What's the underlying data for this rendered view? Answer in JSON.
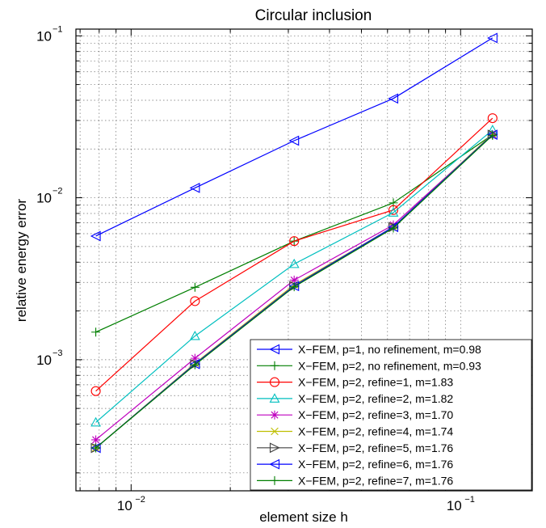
{
  "chart_data": {
    "type": "line",
    "title": "Circular inclusion",
    "xlabel": "element size h",
    "ylabel": "relative energy error",
    "xscale": "log",
    "yscale": "log",
    "xlim": [
      0.0068,
      0.165
    ],
    "ylim": [
      0.000155,
      0.11
    ],
    "grid": true,
    "legend_position": "bottom-right",
    "x": [
      0.0078125,
      0.015625,
      0.03125,
      0.0625,
      0.125
    ],
    "xticks": [
      {
        "value": 0.01,
        "base": "10",
        "exp": "−2"
      },
      {
        "value": 0.1,
        "base": "10",
        "exp": "−1"
      }
    ],
    "yticks": [
      {
        "value": 0.001,
        "base": "10",
        "exp": "−3"
      },
      {
        "value": 0.01,
        "base": "10",
        "exp": "−2"
      },
      {
        "value": 0.1,
        "base": "10",
        "exp": "−1"
      }
    ],
    "series": [
      {
        "name": "X−FEM, p=1, no refinement, m=0.98",
        "color": "#0000ff",
        "marker": "triangle-left",
        "values": [
          0.0058,
          0.0115,
          0.0225,
          0.041,
          0.097
        ]
      },
      {
        "name": "X−FEM, p=2, no refinement, m=0.93",
        "color": "#007f00",
        "marker": "plus",
        "values": [
          0.00148,
          0.0028,
          0.0054,
          0.0093,
          0.0245
        ]
      },
      {
        "name": "X−FEM, p=2, refine=1, m=1.83",
        "color": "#ff0000",
        "marker": "circle",
        "values": [
          0.00064,
          0.0023,
          0.0054,
          0.0084,
          0.031
        ]
      },
      {
        "name": "X−FEM, p=2, refine=2, m=1.82",
        "color": "#00bfbf",
        "marker": "triangle-up",
        "values": [
          0.00041,
          0.0014,
          0.0039,
          0.0081,
          0.0262
        ]
      },
      {
        "name": "X−FEM, p=2, refine=3, m=1.70",
        "color": "#bf00bf",
        "marker": "star",
        "values": [
          0.00032,
          0.00102,
          0.0031,
          0.0068,
          0.0245
        ]
      },
      {
        "name": "X−FEM, p=2, refine=4, m=1.74",
        "color": "#bfbf00",
        "marker": "x",
        "values": [
          0.000285,
          0.00095,
          0.0029,
          0.0066,
          0.0248
        ]
      },
      {
        "name": "X−FEM, p=2, refine=5, m=1.76",
        "color": "#404040",
        "marker": "triangle-right",
        "values": [
          0.000285,
          0.00094,
          0.00285,
          0.0066,
          0.0245
        ]
      },
      {
        "name": "X−FEM, p=2, refine=6, m=1.76",
        "color": "#0000ff",
        "marker": "triangle-left",
        "values": [
          0.000285,
          0.00094,
          0.00285,
          0.0066,
          0.0245
        ]
      },
      {
        "name": "X−FEM, p=2, refine=7, m=1.76",
        "color": "#007f00",
        "marker": "plus",
        "values": [
          0.000285,
          0.00093,
          0.00282,
          0.0065,
          0.0243
        ]
      }
    ]
  }
}
